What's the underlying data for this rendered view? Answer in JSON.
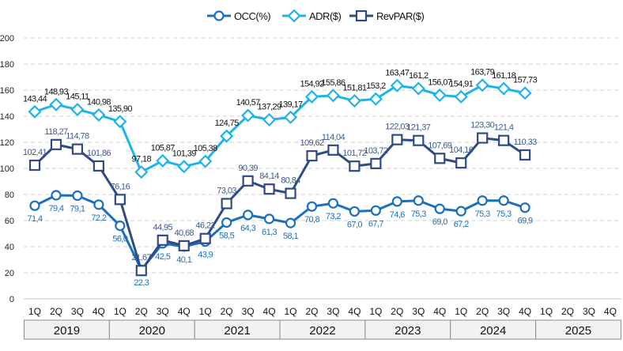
{
  "chart_data": {
    "type": "line",
    "title": "",
    "xlabel": "",
    "ylabel": "",
    "ylim": [
      0,
      200
    ],
    "yticks": [
      "0",
      "20",
      "40",
      "60",
      "80",
      "100",
      "120",
      "140",
      "160",
      "180",
      "200"
    ],
    "grid": true,
    "legend_position": "top-center",
    "quarters": [
      "1Q",
      "2Q",
      "3Q",
      "4Q"
    ],
    "years": [
      "2019",
      "2020",
      "2021",
      "2022",
      "2023",
      "2024",
      "2025"
    ],
    "colors": {
      "OCC": "#1a6fbf",
      "ADR": "#1eb4e8",
      "RevPAR": "#2f4b86"
    },
    "series": [
      {
        "name": "OCC(%)",
        "key": "OCC",
        "marker": "circle",
        "values": [
          71.4,
          79.4,
          79.1,
          72.2,
          56.0,
          22.3,
          42.5,
          40.1,
          43.9,
          58.5,
          64.3,
          61.3,
          58.1,
          70.8,
          73.2,
          67.0,
          67.7,
          74.6,
          75.3,
          69.0,
          67.2,
          75.3,
          75.3,
          69.9
        ],
        "labels": [
          "71,4",
          "79,4",
          "79,1",
          "72,2",
          "56,0",
          "22,3",
          "42,5",
          "40,1",
          "43,9",
          "58,5",
          "64,3",
          "61,3",
          "58,1",
          "70,8",
          "73,2",
          "67,0",
          "67,7",
          "74,6",
          "75,3",
          "69,0",
          "67,2",
          "75,3",
          "75,3",
          "69,9"
        ]
      },
      {
        "name": "ADR($)",
        "key": "ADR",
        "marker": "diamond",
        "values": [
          143.44,
          148.93,
          145.11,
          140.98,
          135.9,
          97.18,
          105.87,
          101.39,
          105.38,
          124.75,
          140.57,
          137.29,
          139.17,
          154.92,
          155.86,
          151.81,
          153.2,
          163.47,
          161.2,
          156.07,
          154.91,
          163.79,
          161.18,
          157.73
        ],
        "labels": [
          "143,44",
          "148,93",
          "145,11",
          "140,98",
          "135,90",
          "97,18",
          "105,87",
          "101,39",
          "105,38",
          "124,75",
          "140,57",
          "137,29",
          "139,17",
          "154,92",
          "155,86",
          "151,81",
          "153,2",
          "163,47",
          "161,2",
          "156,07",
          "154,91",
          "163,79",
          "161,18",
          "157,73"
        ]
      },
      {
        "name": "RevPAR($)",
        "key": "RevPAR",
        "marker": "square",
        "values": [
          102.41,
          118.27,
          114.78,
          101.86,
          76.16,
          21.67,
          44.95,
          40.68,
          46.22,
          73.03,
          90.39,
          84.14,
          80.84,
          109.62,
          114.04,
          101.72,
          103.72,
          122.03,
          121.37,
          107.69,
          104.16,
          123.3,
          121.4,
          110.33
        ],
        "labels": [
          "102,41",
          "118,27",
          "114,78",
          "101,86",
          "76,16",
          "21,67",
          "44,95",
          "40,68",
          "46,22",
          "73,03",
          "90,39",
          "84,14",
          "80,84",
          "109,62",
          "114,04",
          "101,72",
          "103,72",
          "122,03",
          "121,37",
          "107,69",
          "104,16",
          "123,30",
          "121,4",
          "110,33"
        ]
      }
    ]
  }
}
